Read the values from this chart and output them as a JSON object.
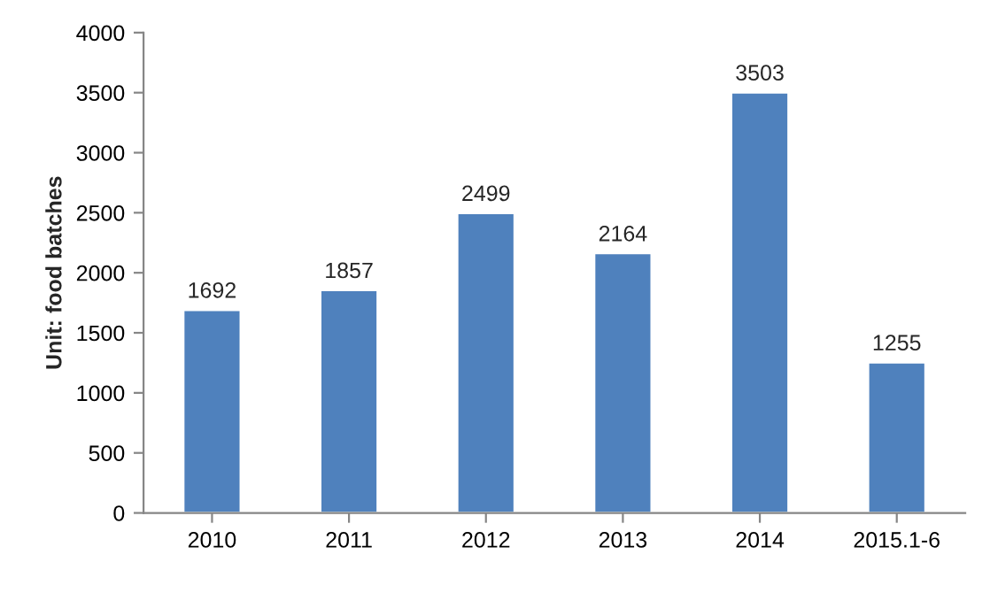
{
  "chart_data": {
    "type": "bar",
    "ylabel": "Unit: food batches",
    "categories": [
      "2010",
      "2011",
      "2012",
      "2013",
      "2014",
      "2015.1-6"
    ],
    "values": [
      1692,
      1857,
      2499,
      2164,
      3503,
      1255
    ],
    "color": "#4f81bd",
    "ylim": [
      0,
      4000
    ],
    "yticks": [
      0,
      500,
      1000,
      1500,
      2000,
      2500,
      3000,
      3500,
      4000
    ],
    "data_labels": true,
    "grid": false
  }
}
